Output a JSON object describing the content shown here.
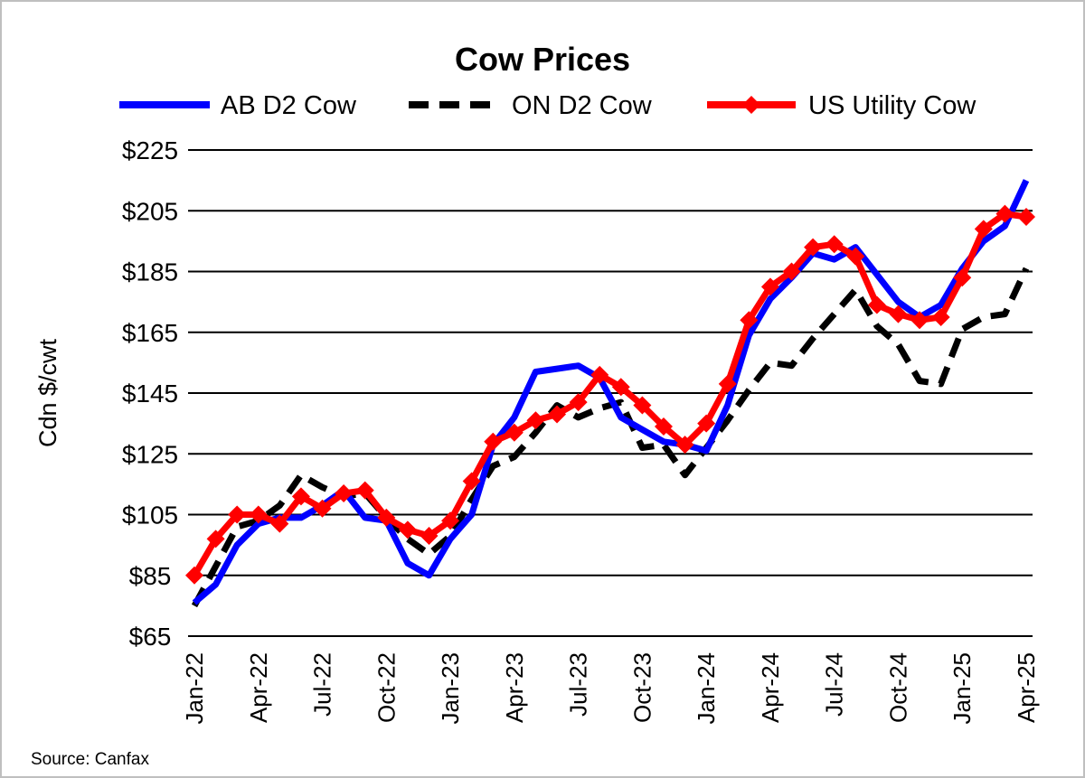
{
  "chart_data": {
    "type": "line",
    "title": "Cow Prices",
    "ylabel": "Cdn $/cwt",
    "xlabel": "",
    "ylim": [
      65,
      225
    ],
    "yticks": [
      65,
      85,
      105,
      125,
      145,
      165,
      185,
      205,
      225
    ],
    "ytick_labels": [
      "$65",
      "$85",
      "$105",
      "$125",
      "$145",
      "$165",
      "$185",
      "$205",
      "$225"
    ],
    "x": [
      "Jan-22",
      "Feb-22",
      "Mar-22",
      "Apr-22",
      "May-22",
      "Jun-22",
      "Jul-22",
      "Aug-22",
      "Sep-22",
      "Oct-22",
      "Nov-22",
      "Dec-22",
      "Jan-23",
      "Feb-23",
      "Mar-23",
      "Apr-23",
      "May-23",
      "Jun-23",
      "Jul-23",
      "Aug-23",
      "Sep-23",
      "Oct-23",
      "Nov-23",
      "Dec-23",
      "Jan-24",
      "Feb-24",
      "Mar-24",
      "Apr-24",
      "May-24",
      "Jun-24",
      "Jul-24",
      "Aug-24",
      "Sep-24",
      "Oct-24",
      "Nov-24",
      "Dec-24",
      "Jan-25",
      "Feb-25",
      "Mar-25",
      "Apr-25"
    ],
    "xtick_labels": [
      "Jan-22",
      "Apr-22",
      "Jul-22",
      "Oct-22",
      "Jan-23",
      "Apr-23",
      "Jul-23",
      "Oct-23",
      "Jan-24",
      "Apr-24",
      "Jul-24",
      "Oct-24",
      "Jan-25",
      "Apr-25"
    ],
    "grid": true,
    "legend_position": "top",
    "series": [
      {
        "name": "AB D2 Cow",
        "color": "#0000ff",
        "style": "solid",
        "values": [
          76,
          82,
          95,
          102,
          104,
          104,
          108,
          113,
          104,
          103,
          89,
          85,
          97,
          105,
          128,
          137,
          152,
          153,
          154,
          150,
          137,
          133,
          129,
          128,
          126,
          141,
          164,
          176,
          183,
          191,
          189,
          193,
          184,
          175,
          170,
          174,
          186,
          195,
          200,
          215
        ]
      },
      {
        "name": "ON D2 Cow",
        "color": "#000000",
        "style": "dashed",
        "values": [
          75,
          88,
          101,
          103,
          108,
          118,
          114,
          111,
          112,
          104,
          97,
          92,
          98,
          110,
          121,
          124,
          132,
          141,
          137,
          140,
          142,
          127,
          128,
          118,
          127,
          136,
          146,
          155,
          154,
          163,
          171,
          179,
          167,
          161,
          149,
          148,
          166,
          170,
          171,
          186
        ]
      },
      {
        "name": "US Utility Cow",
        "color": "#ff0000",
        "style": "solid-diamond",
        "values": [
          85,
          97,
          105,
          105,
          102,
          111,
          107,
          112,
          113,
          104,
          100,
          98,
          103,
          116,
          129,
          132,
          136,
          138,
          142,
          151,
          147,
          141,
          134,
          128,
          135,
          148,
          169,
          180,
          185,
          193,
          194,
          190,
          174,
          171,
          169,
          170,
          183,
          199,
          204,
          203
        ]
      }
    ],
    "source": "Source:  Canfax"
  }
}
